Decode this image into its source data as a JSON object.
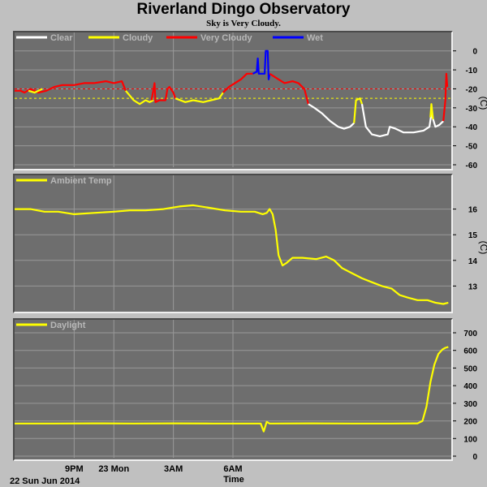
{
  "title": "Riverland Dingo Observatory",
  "subtitle": "Sky is Very Cloudy.",
  "x_axis": {
    "label": "Time",
    "ticks": [
      {
        "t": 3,
        "label": "9PM"
      },
      {
        "t": 5,
        "label": "23 Mon"
      },
      {
        "t": 8,
        "label": "3AM"
      },
      {
        "t": 11,
        "label": "6AM"
      }
    ],
    "start_label": "22 Sun Jun 2014"
  },
  "colors": {
    "clear": "#ffffff",
    "cloudy": "#ffff00",
    "very_cloudy": "#ff0000",
    "wet": "#0000ff",
    "panel_bg": "#6e6e6e",
    "grid": "#999999",
    "page_bg": "#c0c0c0"
  },
  "chart_data": [
    {
      "type": "line",
      "legend": [
        "Clear",
        "Cloudy",
        "Very Cloudy",
        "Wet"
      ],
      "unit": "(C)",
      "ylim": [
        -60,
        5
      ],
      "yticks": [
        0,
        -10,
        -20,
        -30,
        -40,
        -50,
        -60
      ],
      "thresholds": [
        {
          "value": -20,
          "color": "#ff0000"
        },
        {
          "value": -25,
          "color": "#ffff00"
        }
      ],
      "segments": [
        {
          "series": "Very Cloudy",
          "points": [
            [
              0,
              -21
            ],
            [
              0.3,
              -21
            ],
            [
              0.5,
              -22
            ],
            [
              0.8,
              -20
            ],
            [
              1.2,
              -22
            ],
            [
              1.6,
              -21
            ],
            [
              2.0,
              -19
            ],
            [
              2.4,
              -18
            ],
            [
              3.0,
              -18
            ],
            [
              3.5,
              -17
            ],
            [
              4.0,
              -17
            ],
            [
              4.6,
              -16
            ],
            [
              5.0,
              -17
            ],
            [
              5.4,
              -16
            ],
            [
              5.6,
              -21
            ]
          ]
        },
        {
          "series": "Cloudy",
          "points": [
            [
              0.7,
              -21
            ],
            [
              1.0,
              -22
            ],
            [
              1.4,
              -20
            ]
          ]
        },
        {
          "series": "Cloudy",
          "points": [
            [
              5.6,
              -21
            ],
            [
              6.0,
              -26
            ],
            [
              6.3,
              -28
            ],
            [
              6.6,
              -26
            ],
            [
              6.8,
              -27
            ],
            [
              7.0,
              -26
            ]
          ]
        },
        {
          "series": "Very Cloudy",
          "points": [
            [
              6.9,
              -26
            ],
            [
              7.0,
              -20
            ],
            [
              7.05,
              -17
            ],
            [
              7.1,
              -27
            ],
            [
              7.3,
              -26
            ],
            [
              7.6,
              -26
            ],
            [
              7.7,
              -20
            ],
            [
              7.8,
              -19
            ],
            [
              8.0,
              -22
            ],
            [
              8.1,
              -25
            ]
          ]
        },
        {
          "series": "Cloudy",
          "points": [
            [
              8.1,
              -25
            ],
            [
              8.6,
              -27
            ],
            [
              9.0,
              -26
            ],
            [
              9.5,
              -27
            ],
            [
              9.9,
              -26
            ],
            [
              10.3,
              -25
            ],
            [
              10.5,
              -22
            ]
          ]
        },
        {
          "series": "Very Cloudy",
          "points": [
            [
              10.5,
              -22
            ],
            [
              10.8,
              -19
            ],
            [
              11.1,
              -17
            ],
            [
              11.4,
              -15
            ],
            [
              11.7,
              -12
            ],
            [
              12.0,
              -12
            ]
          ]
        },
        {
          "series": "Wet",
          "points": [
            [
              12.0,
              -12
            ],
            [
              12.2,
              -11
            ],
            [
              12.25,
              -4
            ],
            [
              12.3,
              -12
            ],
            [
              12.6,
              -12
            ],
            [
              12.65,
              0
            ],
            [
              12.75,
              0
            ],
            [
              12.8,
              -15
            ],
            [
              12.85,
              -12
            ]
          ]
        },
        {
          "series": "Very Cloudy",
          "points": [
            [
              12.85,
              -12
            ],
            [
              13.3,
              -15
            ],
            [
              13.6,
              -17
            ],
            [
              14.0,
              -16
            ],
            [
              14.3,
              -17
            ],
            [
              14.6,
              -20
            ],
            [
              14.8,
              -28
            ]
          ]
        },
        {
          "series": "Clear",
          "points": [
            [
              14.8,
              -28
            ],
            [
              15.1,
              -30
            ],
            [
              15.5,
              -33
            ],
            [
              15.9,
              -37
            ],
            [
              16.3,
              -40
            ],
            [
              16.6,
              -41
            ],
            [
              16.9,
              -40
            ],
            [
              17.1,
              -38
            ]
          ]
        },
        {
          "series": "Cloudy",
          "points": [
            [
              17.1,
              -38
            ],
            [
              17.2,
              -26
            ],
            [
              17.4,
              -25
            ],
            [
              17.5,
              -28
            ]
          ]
        },
        {
          "series": "Clear",
          "points": [
            [
              17.5,
              -28
            ],
            [
              17.7,
              -40
            ],
            [
              18.0,
              -44
            ],
            [
              18.4,
              -45
            ],
            [
              18.8,
              -44
            ],
            [
              18.9,
              -40
            ],
            [
              19.2,
              -41
            ],
            [
              19.6,
              -43
            ],
            [
              20.1,
              -43
            ],
            [
              20.6,
              -42
            ],
            [
              20.9,
              -40
            ],
            [
              21.0,
              -33
            ],
            [
              21.2,
              -40
            ],
            [
              21.4,
              -39
            ],
            [
              21.6,
              -37
            ]
          ]
        },
        {
          "series": "Cloudy",
          "points": [
            [
              20.95,
              -35
            ],
            [
              21.0,
              -28
            ],
            [
              21.08,
              -36
            ]
          ]
        },
        {
          "series": "Very Cloudy",
          "points": [
            [
              21.6,
              -37
            ],
            [
              21.7,
              -26
            ],
            [
              21.75,
              -12
            ],
            [
              21.8,
              -19
            ]
          ]
        }
      ]
    },
    {
      "type": "line",
      "legend": [
        "Ambient Temp"
      ],
      "unit": "(C)",
      "ylim": [
        12,
        17
      ],
      "yticks": [
        13,
        14,
        15,
        16
      ],
      "series": [
        {
          "name": "Ambient Temp",
          "points": [
            [
              0,
              16
            ],
            [
              0.8,
              16.0
            ],
            [
              1.5,
              15.9
            ],
            [
              2.2,
              15.9
            ],
            [
              3.0,
              15.8
            ],
            [
              4.0,
              15.85
            ],
            [
              5.0,
              15.9
            ],
            [
              5.8,
              15.95
            ],
            [
              6.6,
              15.95
            ],
            [
              7.5,
              16.0
            ],
            [
              8.3,
              16.1
            ],
            [
              9.0,
              16.15
            ],
            [
              9.8,
              16.05
            ],
            [
              10.6,
              15.95
            ],
            [
              11.4,
              15.9
            ],
            [
              12.1,
              15.9
            ],
            [
              12.5,
              15.8
            ],
            [
              12.7,
              15.85
            ],
            [
              12.85,
              16.0
            ],
            [
              13.0,
              15.8
            ],
            [
              13.15,
              15.2
            ],
            [
              13.3,
              14.2
            ],
            [
              13.5,
              13.8
            ],
            [
              13.7,
              13.9
            ],
            [
              14.0,
              14.1
            ],
            [
              14.5,
              14.1
            ],
            [
              15.2,
              14.05
            ],
            [
              15.7,
              14.15
            ],
            [
              16.1,
              14.0
            ],
            [
              16.5,
              13.7
            ],
            [
              17.0,
              13.5
            ],
            [
              17.5,
              13.3
            ],
            [
              18.0,
              13.15
            ],
            [
              18.5,
              13.0
            ],
            [
              19.0,
              12.9
            ],
            [
              19.4,
              12.65
            ],
            [
              19.8,
              12.55
            ],
            [
              20.3,
              12.45
            ],
            [
              20.8,
              12.45
            ],
            [
              21.2,
              12.35
            ],
            [
              21.6,
              12.3
            ],
            [
              21.85,
              12.35
            ]
          ]
        }
      ]
    },
    {
      "type": "line",
      "legend": [
        "Daylight"
      ],
      "unit": "",
      "ylim": [
        0,
        700
      ],
      "yticks": [
        0,
        100,
        200,
        300,
        400,
        500,
        600,
        700
      ],
      "series": [
        {
          "name": "Daylight",
          "points": [
            [
              0,
              185
            ],
            [
              2,
              185
            ],
            [
              4,
              186
            ],
            [
              6,
              185
            ],
            [
              8,
              186
            ],
            [
              10,
              185
            ],
            [
              12.4,
              185
            ],
            [
              12.55,
              140
            ],
            [
              12.7,
              195
            ],
            [
              12.85,
              185
            ],
            [
              15,
              186
            ],
            [
              17,
              185
            ],
            [
              19,
              185
            ],
            [
              20.3,
              186
            ],
            [
              20.55,
              200
            ],
            [
              20.75,
              280
            ],
            [
              20.95,
              420
            ],
            [
              21.15,
              520
            ],
            [
              21.35,
              580
            ],
            [
              21.55,
              605
            ],
            [
              21.7,
              615
            ],
            [
              21.85,
              620
            ]
          ]
        }
      ]
    }
  ]
}
